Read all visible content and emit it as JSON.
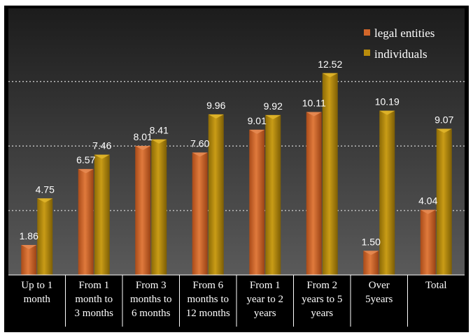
{
  "colors": {
    "frame": "#000000",
    "plot_top": "#1c1c1c",
    "plot_bottom": "#5a5a5a",
    "legal_entities": "#d2662a",
    "individuals": "#b98c0c",
    "grid": "#bdbdbd",
    "text": "#ffffff"
  },
  "chart_data": {
    "type": "bar",
    "categories": [
      [
        "Up to 1",
        "month"
      ],
      [
        "From 1",
        "month to",
        "3 months"
      ],
      [
        "From 3",
        "months to",
        "6 months"
      ],
      [
        "From 6",
        "months to",
        "12 months"
      ],
      [
        "From 1",
        "year to 2",
        "years"
      ],
      [
        "From 2",
        "years to 5",
        "years"
      ],
      [
        "Over",
        "5years"
      ],
      [
        "Total"
      ]
    ],
    "series": [
      {
        "name": "legal entities",
        "values": [
          1.86,
          6.57,
          8.01,
          7.6,
          9.01,
          10.11,
          1.5,
          4.04
        ],
        "labels": [
          "1.86",
          "6.57",
          "8.01",
          "7.60",
          "9.01",
          "10.11",
          "1.50",
          "4.04"
        ]
      },
      {
        "name": "individuals",
        "values": [
          4.75,
          7.46,
          8.41,
          9.96,
          9.92,
          12.52,
          10.19,
          9.07
        ],
        "labels": [
          "4.75",
          "7.46",
          "8.41",
          "9.96",
          "9.92",
          "12.52",
          "10.19",
          "9.07"
        ]
      }
    ],
    "ylim": [
      0,
      14
    ],
    "grid": true,
    "gridlines_at": [
      4,
      8,
      12
    ],
    "legend_position": "top-right",
    "title": "",
    "xlabel": "",
    "ylabel": ""
  }
}
